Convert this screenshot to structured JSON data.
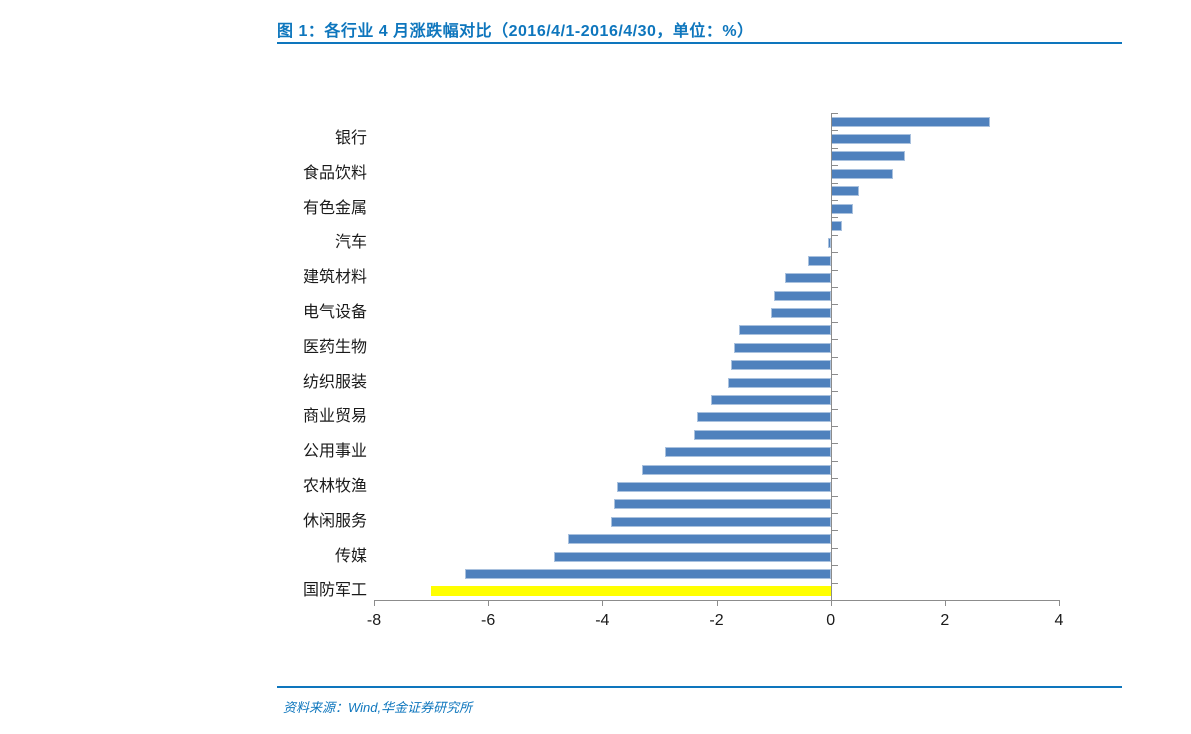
{
  "header": {
    "title": "图 1：各行业 4 月涨跌幅对比（2016/4/1-2016/4/30，单位：%）",
    "accent_color": "#0E76BD"
  },
  "footer": {
    "source": "资料来源：Wind,华金证券研究所"
  },
  "chart_data": {
    "type": "bar",
    "orientation": "horizontal",
    "title": "图 1：各行业 4 月涨跌幅对比（2016/4/1-2016/4/30，单位：%）",
    "unit": "%",
    "xlim": [
      -8,
      4
    ],
    "x_ticks": [
      -8,
      -6,
      -4,
      -2,
      0,
      2,
      4
    ],
    "grid": false,
    "legend": null,
    "bar_color": "#4F81BD",
    "bar_border_color": "#A9C1DE",
    "highlight_color": "#FFFF00",
    "axis_color": "#8C8C8C",
    "note": "labels shown for every second bar only, as in source image",
    "bars": [
      {
        "label": "",
        "value": 2.8
      },
      {
        "label": "银行",
        "value": 1.4
      },
      {
        "label": "",
        "value": 1.3
      },
      {
        "label": "食品饮料",
        "value": 1.1
      },
      {
        "label": "",
        "value": 0.5
      },
      {
        "label": "有色金属",
        "value": 0.4
      },
      {
        "label": "",
        "value": 0.2
      },
      {
        "label": "汽车",
        "value": -0.05
      },
      {
        "label": "",
        "value": -0.4
      },
      {
        "label": "建筑材料",
        "value": -0.8
      },
      {
        "label": "",
        "value": -1.0
      },
      {
        "label": "电气设备",
        "value": -1.05
      },
      {
        "label": "",
        "value": -1.6
      },
      {
        "label": "医药生物",
        "value": -1.7
      },
      {
        "label": "",
        "value": -1.75
      },
      {
        "label": "纺织服装",
        "value": -1.8
      },
      {
        "label": "",
        "value": -2.1
      },
      {
        "label": "商业贸易",
        "value": -2.35
      },
      {
        "label": "",
        "value": -2.4
      },
      {
        "label": "公用事业",
        "value": -2.9
      },
      {
        "label": "",
        "value": -3.3
      },
      {
        "label": "农林牧渔",
        "value": -3.75
      },
      {
        "label": "",
        "value": -3.8
      },
      {
        "label": "休闲服务",
        "value": -3.85
      },
      {
        "label": "",
        "value": -4.6
      },
      {
        "label": "传媒",
        "value": -4.85
      },
      {
        "label": "",
        "value": -6.4
      },
      {
        "label": "国防军工",
        "value": -7.0,
        "highlight": true
      }
    ]
  }
}
